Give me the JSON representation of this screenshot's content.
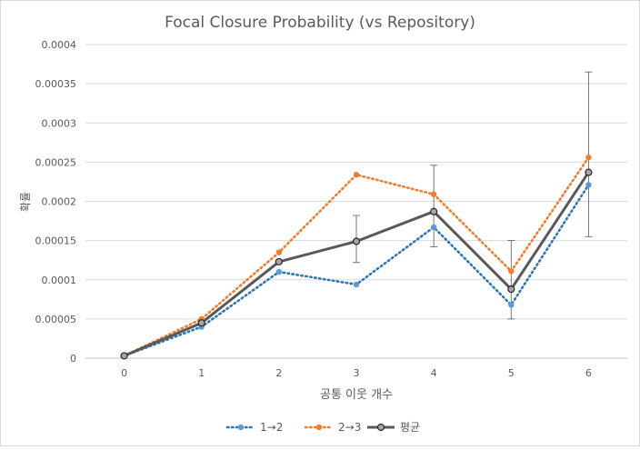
{
  "chart_data": {
    "type": "line",
    "title": "Focal Closure Probability (vs Repository)",
    "xlabel": "공통 이웃 개수",
    "ylabel": "확률",
    "x": [
      0,
      1,
      2,
      3,
      4,
      5,
      6
    ],
    "ylim": [
      0,
      0.0004
    ],
    "yticks": [
      "0",
      "0.00005",
      "0.0001",
      "0.00015",
      "0.0002",
      "0.00025",
      "0.0003",
      "0.00035",
      "0.0004"
    ],
    "ytick_values": [
      0,
      5e-05,
      0.0001,
      0.00015,
      0.0002,
      0.00025,
      0.0003,
      0.00035,
      0.0004
    ],
    "grid": true,
    "legend_position": "bottom",
    "series": [
      {
        "name": "1→2",
        "color": "#2e75b6",
        "marker_color": "#5b9bd5",
        "style": "dotted",
        "values": [
          3e-06,
          4e-05,
          0.00011,
          9.4e-05,
          0.000167,
          6.8e-05,
          0.000221
        ]
      },
      {
        "name": "2→3",
        "color": "#ed7d31",
        "marker_color": "#ed7d31",
        "style": "dotted",
        "values": [
          3e-06,
          5e-05,
          0.000135,
          0.000234,
          0.000209,
          0.000111,
          0.000256
        ]
      },
      {
        "name": "평균",
        "color": "#595959",
        "marker_color": "#a6a6a6",
        "style": "solid",
        "values": [
          3e-06,
          4.5e-05,
          0.000123,
          0.000149,
          0.000187,
          8.8e-05,
          0.000237
        ],
        "error_low": [
          null,
          null,
          null,
          0.000122,
          0.000142,
          5e-05,
          0.000155
        ],
        "error_high": [
          null,
          null,
          null,
          0.000182,
          0.000246,
          0.00015,
          0.000365
        ]
      }
    ]
  }
}
